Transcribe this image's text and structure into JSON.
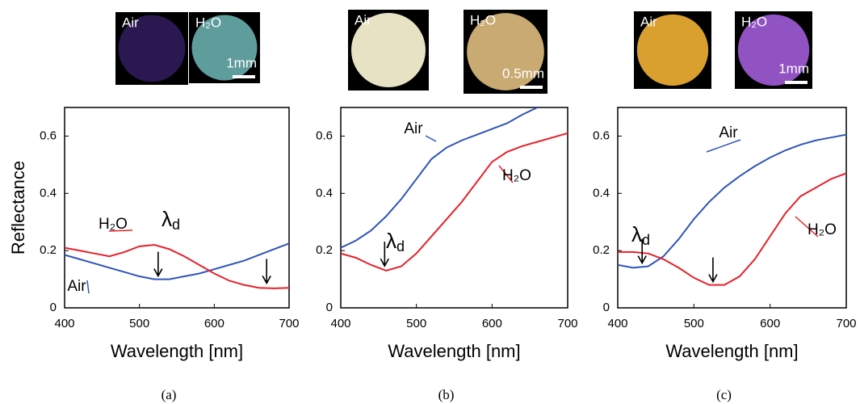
{
  "chart_data": [
    {
      "type": "line",
      "panel_label": "(a)",
      "y_label": "Reflectance",
      "x_label": "Wavelength [nm]",
      "images": [
        {
          "label": "Air"
        },
        {
          "label": "H₂O",
          "scale": "1mm"
        }
      ],
      "x": [
        400,
        420,
        440,
        460,
        480,
        500,
        520,
        540,
        560,
        580,
        600,
        620,
        640,
        660,
        680,
        700
      ],
      "series": [
        {
          "name": "Air",
          "color": "#2e55b8",
          "values": [
            0.185,
            0.17,
            0.155,
            0.14,
            0.125,
            0.11,
            0.1,
            0.1,
            0.11,
            0.12,
            0.135,
            0.15,
            0.165,
            0.185,
            0.205,
            0.225
          ]
        },
        {
          "name": "H₂O",
          "color": "#e8202a",
          "values": [
            0.21,
            0.2,
            0.19,
            0.18,
            0.195,
            0.215,
            0.22,
            0.205,
            0.18,
            0.15,
            0.12,
            0.095,
            0.08,
            0.07,
            0.068,
            0.07
          ]
        }
      ],
      "lambda_label": "λd",
      "arrows": [
        {
          "x": 525,
          "y": 0.1
        },
        {
          "x": 670,
          "y": 0.075
        }
      ],
      "xlim": [
        400,
        700
      ],
      "ylim": [
        0,
        0.7
      ],
      "xticks": [
        400,
        500,
        600,
        700
      ],
      "yticks": [
        0,
        0.2,
        0.4,
        0.6
      ]
    },
    {
      "type": "line",
      "panel_label": "(b)",
      "x_label": "Wavelength [nm]",
      "images": [
        {
          "label": "Air"
        },
        {
          "label": "H₂O",
          "scale": "0.5mm"
        }
      ],
      "x": [
        400,
        420,
        440,
        460,
        480,
        500,
        520,
        540,
        560,
        580,
        600,
        620,
        640,
        660,
        680,
        700
      ],
      "series": [
        {
          "name": "Air",
          "color": "#2e55b8",
          "values": [
            0.21,
            0.235,
            0.27,
            0.32,
            0.38,
            0.45,
            0.52,
            0.56,
            0.585,
            0.605,
            0.625,
            0.645,
            0.675,
            0.7,
            null,
            null
          ]
        },
        {
          "name": "H₂O",
          "color": "#e8202a",
          "values": [
            0.19,
            0.175,
            0.15,
            0.13,
            0.145,
            0.19,
            0.25,
            0.31,
            0.37,
            0.44,
            0.51,
            0.545,
            0.565,
            0.58,
            0.595,
            0.61
          ]
        }
      ],
      "lambda_label": "λd",
      "arrows": [
        {
          "x": 458,
          "y": 0.135
        }
      ],
      "xlim": [
        400,
        700
      ],
      "ylim": [
        0,
        0.7
      ],
      "xticks": [
        400,
        500,
        600,
        700
      ],
      "yticks": [
        0,
        0.2,
        0.4,
        0.6
      ]
    },
    {
      "type": "line",
      "panel_label": "(c)",
      "x_label": "Wavelength [nm]",
      "images": [
        {
          "label": "Air"
        },
        {
          "label": "H₂O",
          "scale": "1mm"
        }
      ],
      "x": [
        400,
        420,
        440,
        460,
        480,
        500,
        520,
        540,
        560,
        580,
        600,
        620,
        640,
        660,
        680,
        700
      ],
      "series": [
        {
          "name": "Air",
          "color": "#2e55b8",
          "values": [
            0.15,
            0.14,
            0.145,
            0.18,
            0.24,
            0.31,
            0.37,
            0.42,
            0.46,
            0.495,
            0.525,
            0.55,
            0.57,
            0.585,
            0.595,
            0.605
          ]
        },
        {
          "name": "H₂O",
          "color": "#e8202a",
          "values": [
            0.195,
            0.195,
            0.19,
            0.17,
            0.14,
            0.105,
            0.08,
            0.08,
            0.11,
            0.17,
            0.25,
            0.33,
            0.39,
            0.42,
            0.45,
            0.47
          ]
        }
      ],
      "lambda_label": "λd",
      "arrows": [
        {
          "x": 432,
          "y": 0.145
        },
        {
          "x": 525,
          "y": 0.08
        }
      ],
      "xlim": [
        400,
        700
      ],
      "ylim": [
        0,
        0.7
      ],
      "xticks": [
        400,
        500,
        600,
        700
      ],
      "yticks": [
        0,
        0.2,
        0.4,
        0.6
      ]
    }
  ]
}
